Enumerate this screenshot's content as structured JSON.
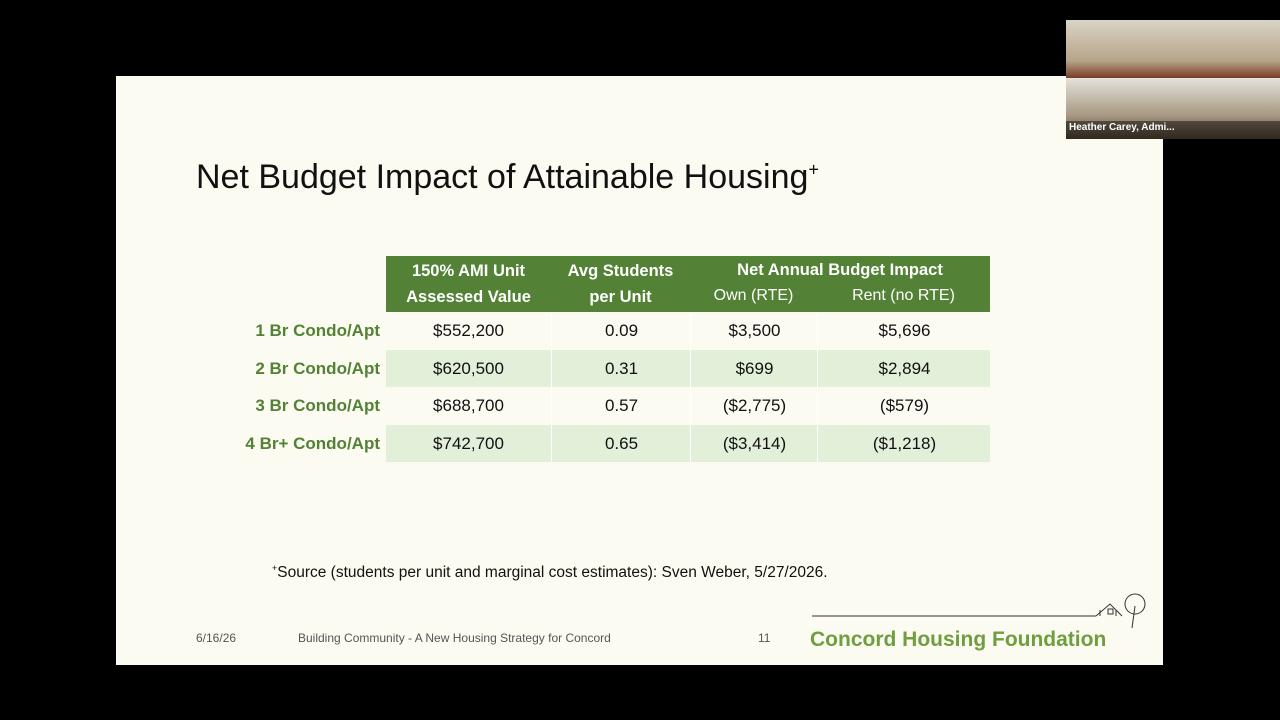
{
  "slide": {
    "title": "Net Budget Impact of Attainable Housing",
    "title_mark": "+",
    "table": {
      "header": {
        "label_column": [
          "150% AMI Unit",
          "Assessed Value"
        ],
        "students_column": [
          "Avg Students",
          "per Unit"
        ],
        "impact_group": "Net Annual Budget Impact",
        "impact_columns": [
          "Own (RTE)",
          "Rent (no RTE)"
        ]
      },
      "rows": [
        [
          "1 Br Condo/Apt",
          "$552,200",
          "0.09",
          "$3,500",
          "$5,696"
        ],
        [
          "2 Br Condo/Apt",
          "$620,500",
          "0.31",
          "$699",
          "$2,894"
        ],
        [
          "3 Br Condo/Apt",
          "$688,700",
          "0.57",
          "($2,775)",
          "($579)"
        ],
        [
          "4 Br+ Condo/Apt",
          "$742,700",
          "0.65",
          "($3,414)",
          "($1,218)"
        ]
      ]
    },
    "footnote_mark": "+",
    "footnote": "Source (students per unit and marginal cost estimates): Sven Weber, 5/27/2026.",
    "footer": {
      "date": "6/16/26",
      "presentation": "Building Community - A New Housing Strategy for Concord",
      "page": "11",
      "logo": "Concord Housing Foundation"
    }
  },
  "video": {
    "participant": "Heather Carey, Admi..."
  }
}
